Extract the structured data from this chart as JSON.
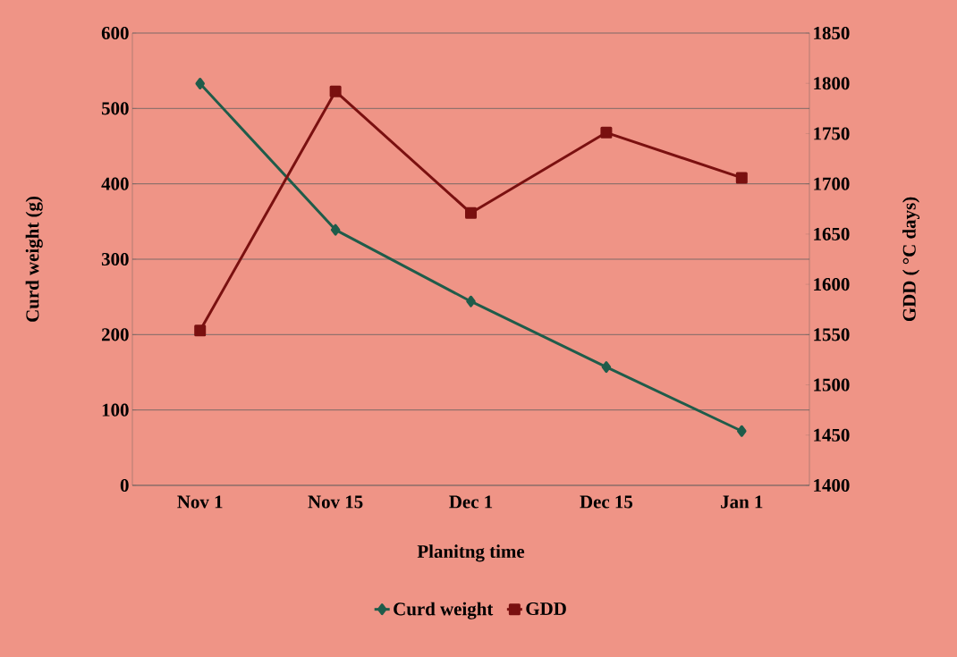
{
  "chart_data": {
    "type": "line",
    "xlabel": "Planitng time",
    "ylabel": "Curd weight (g)",
    "y2label": "GDD ( °C days)",
    "categories": [
      "Nov 1",
      "Nov 15",
      "Dec 1",
      "Dec 15",
      "Jan 1"
    ],
    "series": [
      {
        "name": "Curd weight",
        "color": "#1f5c4a",
        "marker": "diamond",
        "values": [
          533,
          339,
          244,
          157,
          72
        ]
      },
      {
        "name": "GDD",
        "color": "#7a1010",
        "marker": "square",
        "axis": "y2",
        "values": [
          1554,
          1792,
          1671,
          1751,
          1706
        ]
      }
    ],
    "ylim": [
      0,
      600
    ],
    "yticks": [
      0,
      100,
      200,
      300,
      400,
      500,
      600
    ],
    "y2lim": [
      1400,
      1850
    ],
    "y2ticks": [
      1400,
      1450,
      1500,
      1550,
      1600,
      1650,
      1700,
      1750,
      1800,
      1850
    ],
    "grid": "y",
    "legend": "bottom",
    "line_style": "solid"
  }
}
